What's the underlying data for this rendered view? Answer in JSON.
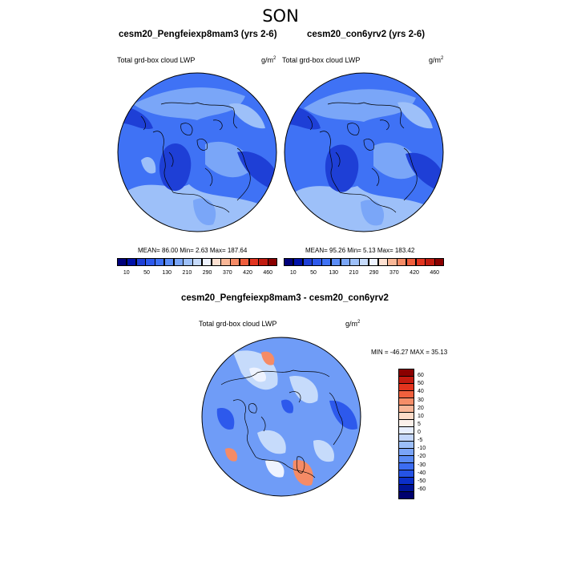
{
  "title": "SON",
  "panels": [
    {
      "id": "left",
      "title": "cesm20_Pengfeiexp8mam3 (yrs 2-6)",
      "left_label": "Total grd-box cloud LWP",
      "units": "g/m",
      "units_sup": "2",
      "stats": "MEAN=  86.00  Min=   2.63  Max= 187.64"
    },
    {
      "id": "right",
      "title": "cesm20_con6yrv2 (yrs 2-6)",
      "left_label": "Total grd-box cloud LWP",
      "units": "g/m",
      "units_sup": "2",
      "stats": "MEAN=  95.26  Min=   5.13  Max= 183.42"
    },
    {
      "id": "diff",
      "title": "cesm20_Pengfeiexp8mam3 - cesm20_con6yrv2",
      "left_label": "Total grd-box cloud LWP",
      "units": "g/m",
      "units_sup": "2",
      "stats": "MIN = -46.27 MAX =  35.13"
    }
  ],
  "abs_colorbar": {
    "colors": [
      "#00007a",
      "#0011a8",
      "#1e3fd6",
      "#2d59ec",
      "#3f72f5",
      "#5b8df7",
      "#7aa6f8",
      "#9dc0f9",
      "#c6dbfb",
      "#eef3ff",
      "#fde1d2",
      "#f9b797",
      "#f58b66",
      "#ef5e3d",
      "#e2341f",
      "#c11b10",
      "#8a0000"
    ],
    "ticks": [
      "10",
      "50",
      "130",
      "210",
      "290",
      "370",
      "420",
      "460"
    ]
  },
  "diff_colorbar": {
    "colors": [
      "#8a0000",
      "#c41b10",
      "#e3341e",
      "#f0603d",
      "#f58d68",
      "#f9b597",
      "#fddcc9",
      "#fbf0ea",
      "#e7eefe",
      "#c3d6fb",
      "#9cbef9",
      "#7aa4f8",
      "#5a8bf6",
      "#3c6df3",
      "#2553e6",
      "#0b2fc9",
      "#001496",
      "#00006e"
    ],
    "ticks": [
      "60",
      "50",
      "40",
      "30",
      "20",
      "10",
      "5",
      "0",
      "-5",
      "-10",
      "-20",
      "-30",
      "-40",
      "-50",
      "-60"
    ]
  },
  "map_colors": {
    "ocean_base": "#3f72f5",
    "deep": "#1e3fd6",
    "light": "#7aa6f8",
    "pale": "#9dc0f9",
    "diff_base": "#6f9cf7",
    "diff_pale": "#c6dbfb",
    "diff_white": "#eef3ff",
    "diff_red": "#f58b66",
    "diff_dark_blue": "#2d59ec"
  }
}
